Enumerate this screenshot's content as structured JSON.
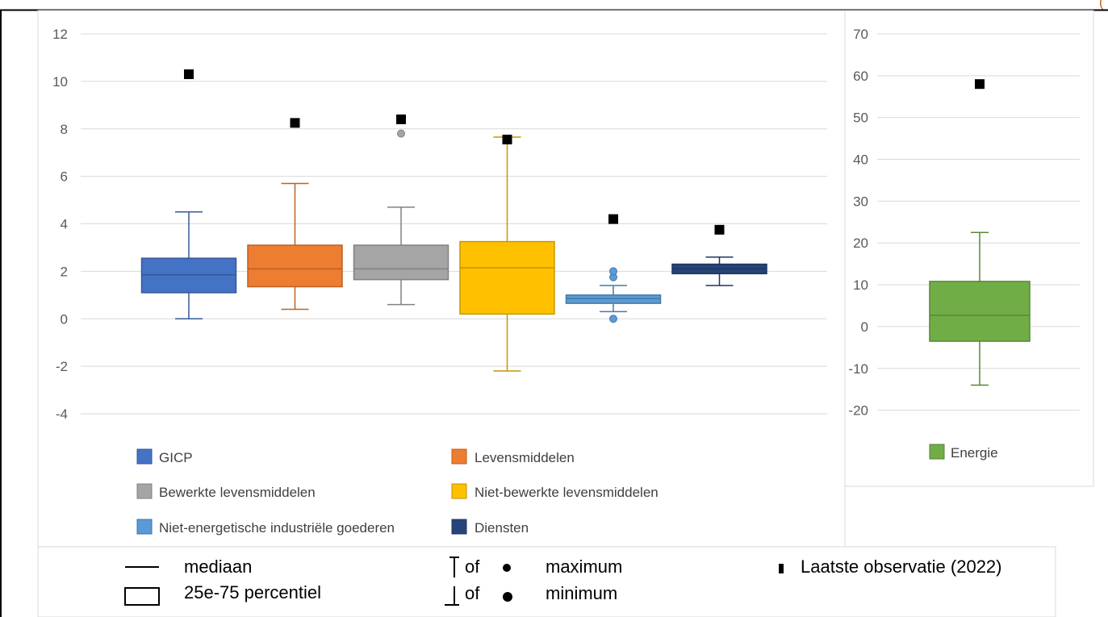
{
  "chart_data": [
    {
      "type": "box",
      "y_ticks": [
        "12",
        "10",
        "8",
        "6",
        "4",
        "2",
        "0",
        "-2",
        "-4"
      ],
      "ylim": [
        -4,
        12
      ],
      "grid": true,
      "legend_position": "bottom",
      "series": [
        {
          "name": "GICP",
          "color": "#4472c4",
          "min": 0.0,
          "q1": 1.1,
          "median": 1.85,
          "q3": 2.55,
          "max": 4.5,
          "outliers": [],
          "last": 10.3
        },
        {
          "name": "Levensmiddelen",
          "color": "#ed7d31",
          "min": 0.4,
          "q1": 1.35,
          "median": 2.1,
          "q3": 3.1,
          "max": 5.7,
          "outliers": [],
          "last": 8.25
        },
        {
          "name": "Bewerkte levensmiddelen",
          "color": "#a5a5a5",
          "min": 0.6,
          "q1": 1.65,
          "median": 2.1,
          "q3": 3.1,
          "max": 4.7,
          "outliers": [
            7.8
          ],
          "last": 8.4
        },
        {
          "name": "Niet-bewerkte levensmiddelen",
          "color": "#ffc000",
          "min": -2.2,
          "q1": 0.2,
          "median": 2.15,
          "q3": 3.25,
          "max": 7.65,
          "outliers": [],
          "last": 7.55
        },
        {
          "name": "Niet-energetische industriële goederen",
          "color": "#5b9bd5",
          "min": 0.3,
          "q1": 0.65,
          "median": 0.85,
          "q3": 1.0,
          "max": 1.4,
          "outliers": [
            0.0,
            1.75,
            2.0
          ],
          "last": 4.2
        },
        {
          "name": "Diensten",
          "color": "#264478",
          "min": 1.4,
          "q1": 1.9,
          "median": 2.1,
          "q3": 2.3,
          "max": 2.6,
          "outliers": [],
          "last": 3.75
        }
      ]
    },
    {
      "type": "box",
      "y_ticks": [
        "70",
        "60",
        "50",
        "40",
        "30",
        "20",
        "10",
        "0",
        "-10",
        "-20"
      ],
      "ylim": [
        -20,
        70
      ],
      "grid": true,
      "legend_position": "bottom",
      "series": [
        {
          "name": "Energie",
          "color": "#70ad47",
          "min": -14,
          "q1": -3.5,
          "median": 2.7,
          "q3": 10.8,
          "max": 22.5,
          "outliers": [],
          "last": 58
        }
      ]
    }
  ],
  "key": {
    "median_label": "mediaan",
    "box_label": "25e-75 percentiel",
    "of_1": "of",
    "of_2": "of",
    "max_label": "maximum",
    "min_label": "minimum",
    "last_label": "Laatste observatie (2022)"
  },
  "corner_text": "("
}
